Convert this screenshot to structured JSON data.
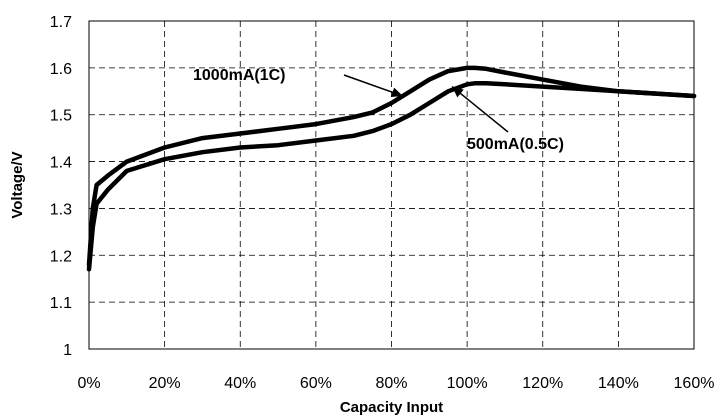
{
  "chart_data": {
    "type": "line",
    "title": "",
    "xlabel": "Capacity Input",
    "ylabel": "Voltage/V",
    "x_unit": "%",
    "xlim": [
      0,
      160
    ],
    "ylim": [
      1,
      1.7
    ],
    "x_ticks": [
      0,
      20,
      40,
      60,
      80,
      100,
      120,
      140,
      160
    ],
    "y_ticks": [
      1,
      1.1,
      1.2,
      1.3,
      1.4,
      1.5,
      1.6,
      1.7
    ],
    "x_tick_labels": [
      "0%",
      "20%",
      "40%",
      "60%",
      "80%",
      "100%",
      "120%",
      "140%",
      "160%"
    ],
    "y_tick_labels": [
      "1",
      "1.1",
      "1.2",
      "1.3",
      "1.4",
      "1.5",
      "1.6",
      "1.7"
    ],
    "grid": true,
    "legend": "none",
    "series": [
      {
        "name": "1000mA(1C)",
        "x": [
          0,
          1,
          2,
          5,
          10,
          20,
          30,
          40,
          50,
          60,
          70,
          75,
          80,
          85,
          90,
          95,
          100,
          102,
          105,
          110,
          120,
          130,
          140,
          150,
          160
        ],
        "y": [
          1.18,
          1.3,
          1.35,
          1.37,
          1.4,
          1.43,
          1.45,
          1.46,
          1.47,
          1.48,
          1.495,
          1.505,
          1.525,
          1.55,
          1.575,
          1.593,
          1.6,
          1.6,
          1.598,
          1.59,
          1.575,
          1.56,
          1.55,
          1.545,
          1.54
        ]
      },
      {
        "name": "500mA(0.5C)",
        "x": [
          0,
          1,
          2,
          5,
          10,
          20,
          30,
          40,
          50,
          60,
          70,
          75,
          80,
          85,
          90,
          95,
          100,
          102,
          105,
          110,
          120,
          130,
          140,
          150,
          160
        ],
        "y": [
          1.17,
          1.26,
          1.31,
          1.34,
          1.38,
          1.405,
          1.42,
          1.43,
          1.435,
          1.445,
          1.455,
          1.465,
          1.48,
          1.5,
          1.525,
          1.55,
          1.565,
          1.567,
          1.567,
          1.565,
          1.56,
          1.555,
          1.55,
          1.545,
          1.54
        ]
      }
    ],
    "annotations": [
      {
        "text": "1000mA(1C)",
        "series": 0,
        "point_x": 83,
        "point_y": 1.54
      },
      {
        "text": "500mA(0.5C)",
        "series": 1,
        "point_x": 96,
        "point_y": 1.56
      }
    ]
  }
}
